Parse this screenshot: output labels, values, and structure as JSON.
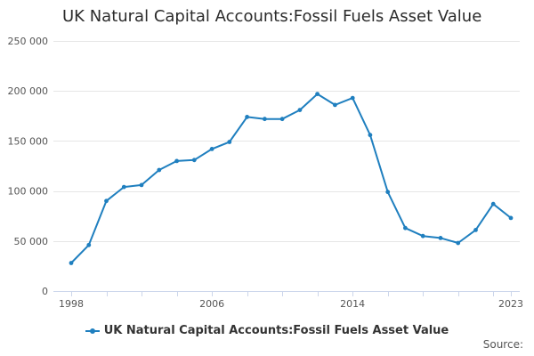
{
  "chart_data": {
    "type": "line",
    "title": "UK Natural Capital Accounts:Fossil Fuels Asset Value",
    "x_tick_labels": [
      "1998",
      "2006",
      "2014",
      "2023"
    ],
    "y_tick_labels": [
      "0",
      "50 000",
      "100 000",
      "150 000",
      "200 000",
      "250 000"
    ],
    "y_ticks": [
      0,
      50000,
      100000,
      150000,
      200000,
      250000
    ],
    "ylim": [
      0,
      250000
    ],
    "xlim": [
      1998,
      2023
    ],
    "grid": true,
    "legend": "bottom",
    "series": [
      {
        "name": "UK Natural Capital Accounts:Fossil Fuels Asset Value",
        "color": "#1f7fbf",
        "x": [
          1998,
          1999,
          2000,
          2001,
          2002,
          2003,
          2004,
          2005,
          2006,
          2007,
          2008,
          2009,
          2010,
          2011,
          2012,
          2013,
          2014,
          2015,
          2016,
          2017,
          2018,
          2019,
          2020,
          2021,
          2022,
          2023
        ],
        "values": [
          28000,
          46000,
          90000,
          104000,
          106000,
          121000,
          130000,
          131000,
          142000,
          149000,
          174000,
          172000,
          172000,
          181000,
          197000,
          186000,
          193000,
          156000,
          99000,
          63000,
          55000,
          53000,
          48000,
          61000,
          87000,
          73000
        ]
      }
    ]
  },
  "credits": {
    "source_label": "Source:"
  }
}
